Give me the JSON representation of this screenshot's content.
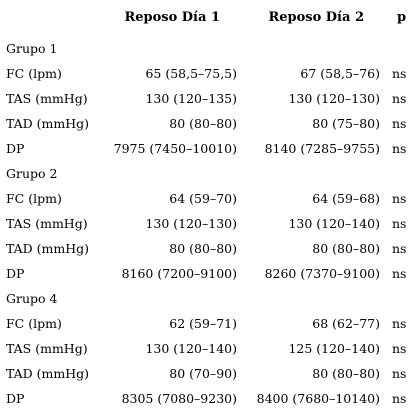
{
  "header": {
    "col1": "",
    "col2": "Reposo Día 1",
    "col3": "Reposo Día 2",
    "col4": "p"
  },
  "groups": [
    {
      "name": "Grupo 1",
      "rows": [
        {
          "label": "FC (lpm)",
          "d1": "65 (58,5–75,5)",
          "d2": "67 (58,5–76)",
          "p": "ns"
        },
        {
          "label": "TAS (mmHg)",
          "d1": "130 (120–135)",
          "d2": "130 (120–130)",
          "p": "ns"
        },
        {
          "label": "TAD (mmHg)",
          "d1": "80 (80–80)",
          "d2": "80 (75–80)",
          "p": "ns"
        },
        {
          "label": "DP",
          "d1": "7975 (7450–10010)",
          "d2": "8140 (7285–9755)",
          "p": "ns"
        }
      ]
    },
    {
      "name": "Grupo 2",
      "rows": [
        {
          "label": "FC (lpm)",
          "d1": "64 (59–70)",
          "d2": "64 (59–68)",
          "p": "ns"
        },
        {
          "label": "TAS (mmHg)",
          "d1": "130 (120–130)",
          "d2": "130 (120–140)",
          "p": "ns"
        },
        {
          "label": "TAD (mmHg)",
          "d1": "80 (80–80)",
          "d2": "80 (80–80)",
          "p": "ns"
        },
        {
          "label": "DP",
          "d1": "8160 (7200–9100)",
          "d2": "8260 (7370–9100)",
          "p": "ns"
        }
      ]
    },
    {
      "name": "Grupo 4",
      "rows": [
        {
          "label": "FC (lpm)",
          "d1": "62 (59–71)",
          "d2": "68 (62–77)",
          "p": "ns"
        },
        {
          "label": "TAS (mmHg)",
          "d1": "130 (120–140)",
          "d2": "125 (120–140)",
          "p": "ns"
        },
        {
          "label": "TAD (mmHg)",
          "d1": "80 (70–90)",
          "d2": "80 (80–80)",
          "p": "ns"
        },
        {
          "label": "DP",
          "d1": "8305 (7080–9230)",
          "d2": "8400 (7680–10140)",
          "p": "ns"
        }
      ]
    }
  ]
}
